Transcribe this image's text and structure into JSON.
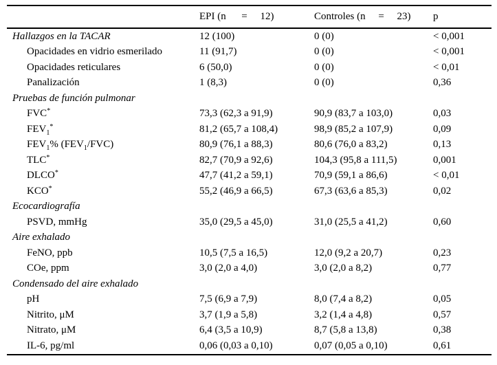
{
  "table": {
    "columns": [
      "",
      "EPI (n      =     12)",
      "Controles (n     =     23)",
      "p"
    ],
    "rows": [
      {
        "type": "section",
        "label": [
          {
            "t": "Hallazgos en la TACAR"
          }
        ],
        "epi": "12 (100)",
        "controles": "0 (0)",
        "p": "< 0,001"
      },
      {
        "type": "item",
        "label": [
          {
            "t": "Opacidades en vidrio esmerilado"
          }
        ],
        "epi": "11 (91,7)",
        "controles": "0 (0)",
        "p": "< 0,001"
      },
      {
        "type": "item",
        "label": [
          {
            "t": "Opacidades reticulares"
          }
        ],
        "epi": "6 (50,0)",
        "controles": "0 (0)",
        "p": "< 0,01"
      },
      {
        "type": "item",
        "label": [
          {
            "t": "Panalización"
          }
        ],
        "epi": "1 (8,3)",
        "controles": "0 (0)",
        "p": "0,36"
      },
      {
        "type": "section",
        "label": [
          {
            "t": "Pruebas de función pulmonar"
          }
        ],
        "epi": "",
        "controles": "",
        "p": ""
      },
      {
        "type": "item",
        "label": [
          {
            "t": "FVC"
          },
          {
            "t": "*",
            "pos": "sup"
          }
        ],
        "epi": "73,3 (62,3 a 91,9)",
        "controles": "90,9 (83,7 a 103,0)",
        "p": "0,03"
      },
      {
        "type": "item",
        "label": [
          {
            "t": "FEV"
          },
          {
            "t": "1",
            "pos": "sub"
          },
          {
            "t": "*",
            "pos": "sup"
          }
        ],
        "epi": "81,2 (65,7 a 108,4)",
        "controles": "98,9 (85,2 a 107,9)",
        "p": "0,09"
      },
      {
        "type": "item",
        "label": [
          {
            "t": "FEV"
          },
          {
            "t": "1",
            "pos": "sub"
          },
          {
            "t": "% (FEV"
          },
          {
            "t": "1",
            "pos": "sub"
          },
          {
            "t": "/FVC)"
          }
        ],
        "epi": "80,9 (76,1 a 88,3)",
        "controles": "80,6 (76,0 a 83,2)",
        "p": "0,13"
      },
      {
        "type": "item",
        "label": [
          {
            "t": "TLC"
          },
          {
            "t": "*",
            "pos": "sup"
          }
        ],
        "epi": "82,7 (70,9 a 92,6)",
        "controles": "104,3 (95,8 a 111,5)",
        "p": "0,001"
      },
      {
        "type": "item",
        "label": [
          {
            "t": "DLCO"
          },
          {
            "t": "*",
            "pos": "sup"
          }
        ],
        "epi": "47,7 (41,2 a 59,1)",
        "controles": "70,9 (59,1 a 86,6)",
        "p": "< 0,01"
      },
      {
        "type": "item",
        "label": [
          {
            "t": "KCO"
          },
          {
            "t": "*",
            "pos": "sup"
          }
        ],
        "epi": "55,2 (46,9 a 66,5)",
        "controles": "67,3 (63,6 a 85,3)",
        "p": "0,02"
      },
      {
        "type": "section",
        "label": [
          {
            "t": "Ecocardiografía"
          }
        ],
        "epi": "",
        "controles": "",
        "p": ""
      },
      {
        "type": "item",
        "label": [
          {
            "t": "PSVD, mmHg"
          }
        ],
        "epi": "35,0 (29,5 a 45,0)",
        "controles": "31,0 (25,5 a 41,2)",
        "p": "0,60"
      },
      {
        "type": "section",
        "label": [
          {
            "t": "Aire exhalado"
          }
        ],
        "epi": "",
        "controles": "",
        "p": ""
      },
      {
        "type": "item",
        "label": [
          {
            "t": "FeNO, ppb"
          }
        ],
        "epi": "10,5 (7,5 a 16,5)",
        "controles": "12,0 (9,2 a 20,7)",
        "p": "0,23"
      },
      {
        "type": "item",
        "label": [
          {
            "t": "COe, ppm"
          }
        ],
        "epi": "3,0 (2,0 a 4,0)",
        "controles": "3,0 (2,0 a 8,2)",
        "p": "0,77"
      },
      {
        "type": "section",
        "label": [
          {
            "t": "Condensado del aire exhalado"
          }
        ],
        "epi": "",
        "controles": "",
        "p": ""
      },
      {
        "type": "item",
        "label": [
          {
            "t": "pH"
          }
        ],
        "epi": "7,5 (6,9 a 7,9)",
        "controles": "8,0 (7,4 a 8,2)",
        "p": "0,05"
      },
      {
        "type": "item",
        "label": [
          {
            "t": "Nitrito, μM"
          }
        ],
        "epi": "3,7 (1,9 a 5,8)",
        "controles": "3,2 (1,4 a 4,8)",
        "p": "0,57"
      },
      {
        "type": "item",
        "label": [
          {
            "t": "Nitrato, μM"
          }
        ],
        "epi": "6,4 (3,5 a 10,9)",
        "controles": "8,7 (5,8 a 13,8)",
        "p": "0,38"
      },
      {
        "type": "item",
        "label": [
          {
            "t": "IL-6, pg/ml"
          }
        ],
        "epi": "0,06 (0,03 a 0,10)",
        "controles": "0,07 (0,05 a 0,10)",
        "p": "0,61"
      }
    ],
    "colors": {
      "text": "#000000",
      "background": "#ffffff",
      "rule": "#000000"
    }
  }
}
